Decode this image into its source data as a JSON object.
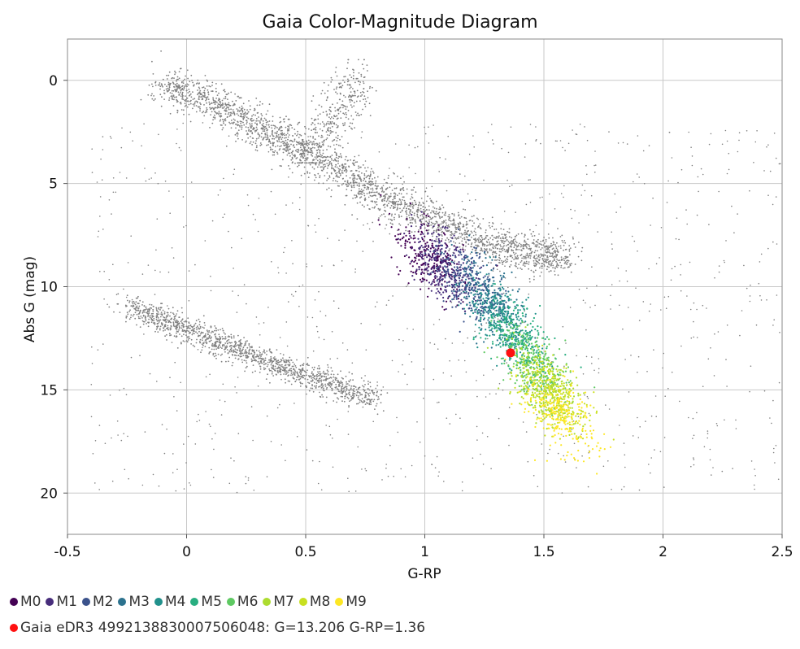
{
  "chart_data": {
    "type": "scatter",
    "title": "Gaia Color-Magnitude Diagram",
    "xlabel": "G-RP",
    "ylabel": "Abs G (mag)",
    "xlim": [
      -0.5,
      2.5
    ],
    "ylim": [
      22,
      -2
    ],
    "y_inverted": true,
    "grid": true,
    "x_ticks": [
      "-0.5",
      "0",
      "0.5",
      "1",
      "1.5",
      "2",
      "2.5"
    ],
    "y_ticks": [
      "0",
      "5",
      "10",
      "15",
      "20"
    ],
    "background_color": "#808080",
    "series": [
      {
        "name": "M0",
        "color": "#440154",
        "center": [
          1.02,
          8.6
        ]
      },
      {
        "name": "M1",
        "color": "#472d7b",
        "center": [
          1.08,
          9.0
        ]
      },
      {
        "name": "M2",
        "color": "#3b528b",
        "center": [
          1.18,
          9.8
        ]
      },
      {
        "name": "M3",
        "color": "#2c728e",
        "center": [
          1.27,
          10.6
        ]
      },
      {
        "name": "M4",
        "color": "#21918c",
        "center": [
          1.33,
          11.6
        ]
      },
      {
        "name": "M5",
        "color": "#28ae80",
        "center": [
          1.4,
          12.6
        ]
      },
      {
        "name": "M6",
        "color": "#5ec962",
        "center": [
          1.46,
          13.8
        ]
      },
      {
        "name": "M7",
        "color": "#addc30",
        "center": [
          1.5,
          14.7
        ]
      },
      {
        "name": "M8",
        "color": "#c8e020",
        "center": [
          1.54,
          15.4
        ]
      },
      {
        "name": "M9",
        "color": "#fde725",
        "center": [
          1.57,
          16.2
        ]
      }
    ],
    "highlight": {
      "label": "Gaia eDR3 4992138830007506048: G=13.206 G-RP=1.36",
      "x": 1.36,
      "y": 13.206,
      "color": "#ff1010"
    }
  }
}
